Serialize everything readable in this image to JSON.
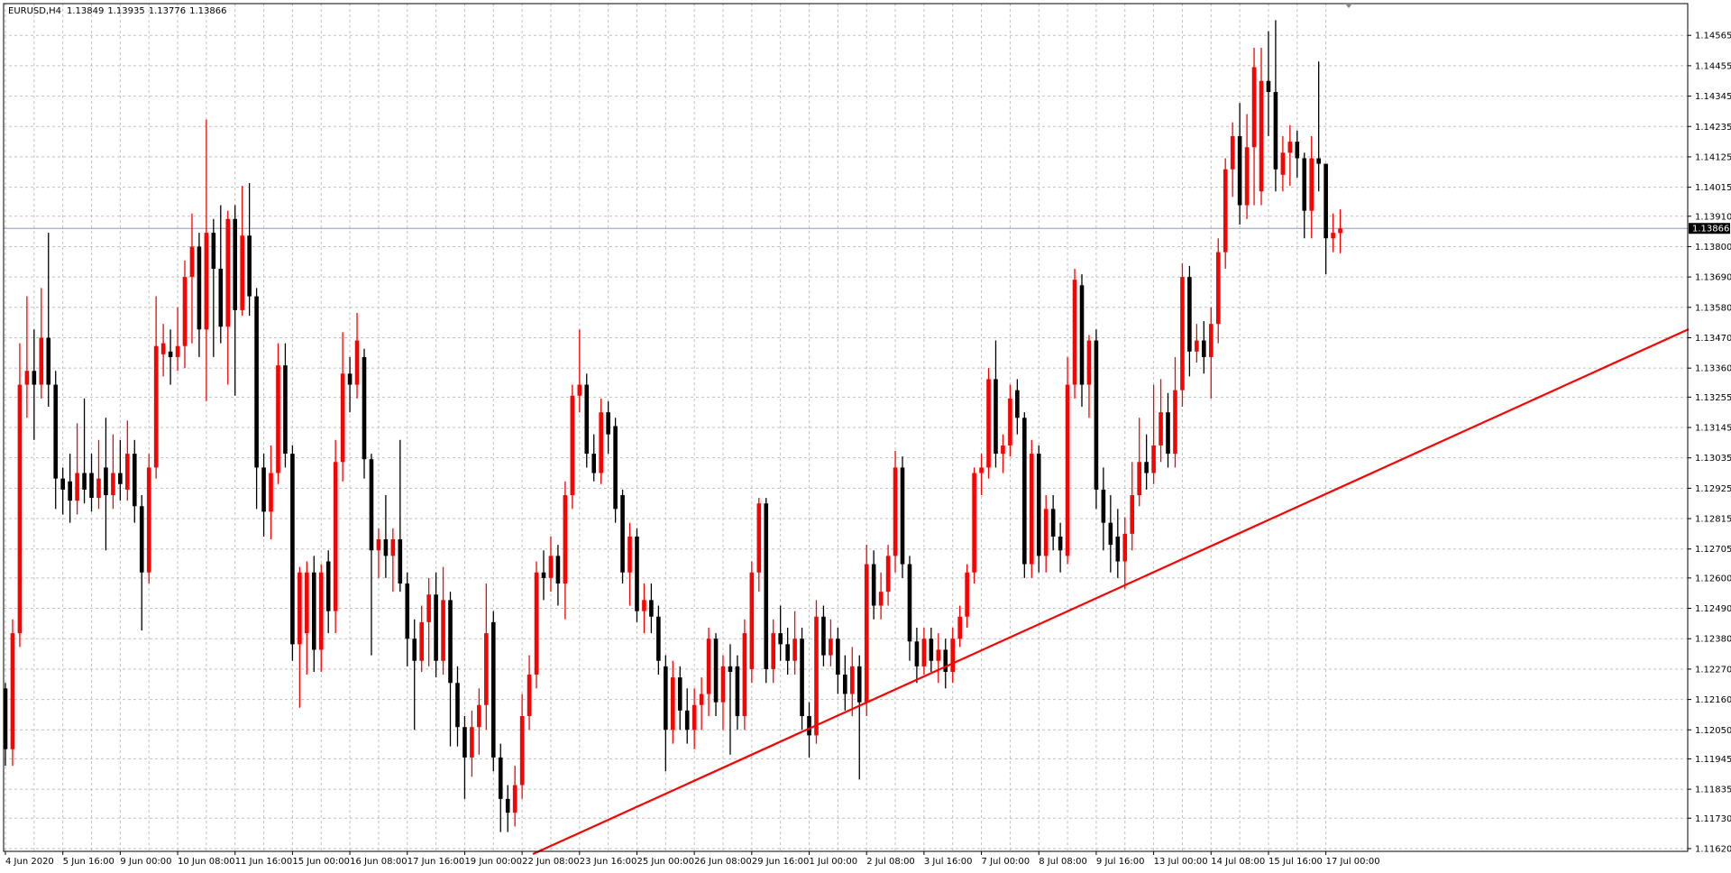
{
  "chart_data": {
    "type": "candlestick",
    "title": "EURUSD,H4",
    "bull_color": "#ff0000",
    "bear_color": "#000000",
    "grid": true,
    "current_price": 1.13866,
    "ylim": [
      1.1161,
      1.1468
    ],
    "yticks": [
      1.14565,
      1.14455,
      1.14345,
      1.14235,
      1.14125,
      1.14015,
      {
        "value": 1.1391,
        "label": "1.13910"
      },
      {
        "value": 1.138,
        "label": "1.13800"
      },
      {
        "value": 1.1369,
        "label": "1.13690"
      },
      {
        "value": 1.1358,
        "label": "1.13580"
      },
      {
        "value": 1.1347,
        "label": "1.13470"
      },
      {
        "value": 1.1336,
        "label": "1.13360"
      },
      1.13255,
      1.13145,
      1.13035,
      1.12925,
      1.12815,
      1.12705,
      {
        "value": 1.126,
        "label": "1.12600"
      },
      {
        "value": 1.1249,
        "label": "1.12490"
      },
      {
        "value": 1.1238,
        "label": "1.12380"
      },
      {
        "value": 1.1227,
        "label": "1.12270"
      },
      {
        "value": 1.1216,
        "label": "1.12160"
      },
      {
        "value": 1.1205,
        "label": "1.12050"
      },
      1.11945,
      1.11835,
      {
        "value": 1.1173,
        "label": "1.11730"
      },
      {
        "value": 1.1162,
        "label": "1.11620"
      }
    ],
    "categories": [
      "4 Jun 2020",
      null,
      null,
      null,
      null,
      null,
      null,
      null,
      "5 Jun 16:00",
      null,
      null,
      null,
      null,
      null,
      null,
      null,
      "9 Jun 00:00",
      null,
      null,
      null,
      null,
      null,
      null,
      null,
      "10 Jun 08:00",
      null,
      null,
      null,
      null,
      null,
      null,
      null,
      "11 Jun 16:00",
      null,
      null,
      null,
      null,
      null,
      null,
      null,
      "15 Jun 00:00",
      null,
      null,
      null,
      null,
      null,
      null,
      null,
      "16 Jun 08:00",
      null,
      null,
      null,
      null,
      null,
      null,
      null,
      "17 Jun 16:00",
      null,
      null,
      null,
      null,
      null,
      null,
      null,
      "19 Jun 00:00",
      null,
      null,
      null,
      null,
      null,
      null,
      null,
      "22 Jun 08:00",
      null,
      null,
      null,
      null,
      null,
      null,
      null,
      "23 Jun 16:00",
      null,
      null,
      null,
      null,
      null,
      null,
      null,
      "25 Jun 00:00",
      null,
      null,
      null,
      null,
      null,
      null,
      null,
      "26 Jun 08:00",
      null,
      null,
      null,
      null,
      null,
      null,
      null,
      "29 Jun 16:00",
      null,
      null,
      null,
      null,
      null,
      null,
      null,
      "1 Jul 00:00",
      null,
      null,
      null,
      null,
      null,
      null,
      null,
      "2 Jul 08:00",
      null,
      null,
      null,
      null,
      null,
      null,
      null,
      "3 Jul 16:00",
      null,
      null,
      null,
      null,
      null,
      null,
      null,
      "7 Jul 00:00",
      null,
      null,
      null,
      null,
      null,
      null,
      null,
      "8 Jul 08:00",
      null,
      null,
      null,
      null,
      null,
      null,
      null,
      "9 Jul 16:00",
      null,
      null,
      null,
      null,
      null,
      null,
      null,
      "13 Jul 00:00",
      null,
      null,
      null,
      null,
      null,
      null,
      null,
      "14 Jul 08:00",
      null,
      null,
      null,
      null,
      null,
      null,
      null,
      "15 Jul 16:00",
      null,
      null,
      null,
      null,
      null,
      null,
      null,
      "17 Jul 00:00",
      null,
      null
    ],
    "ohlc": [
      [
        1.122,
        1.1222,
        1.1192,
        1.1198
      ],
      [
        1.1198,
        1.1245,
        1.1192,
        1.124
      ],
      [
        1.124,
        1.1345,
        1.1235,
        1.133
      ],
      [
        1.133,
        1.1362,
        1.1318,
        1.1335
      ],
      [
        1.1335,
        1.135,
        1.131,
        1.133
      ],
      [
        1.133,
        1.1365,
        1.1325,
        1.1347
      ],
      [
        1.1347,
        1.1385,
        1.1322,
        1.133
      ],
      [
        1.133,
        1.1335,
        1.1285,
        1.1296
      ],
      [
        1.1296,
        1.13,
        1.1283,
        1.1292
      ],
      [
        1.1295,
        1.1305,
        1.128,
        1.1288
      ],
      [
        1.1288,
        1.1316,
        1.1283,
        1.1298
      ],
      [
        1.1298,
        1.1325,
        1.1287,
        1.1292
      ],
      [
        1.1298,
        1.1305,
        1.1284,
        1.1289
      ],
      [
        1.1289,
        1.131,
        1.1285,
        1.1296
      ],
      [
        1.13,
        1.1318,
        1.127,
        1.129
      ],
      [
        1.129,
        1.1312,
        1.1285,
        1.1298
      ],
      [
        1.1298,
        1.131,
        1.1288,
        1.1294
      ],
      [
        1.1292,
        1.1317,
        1.1288,
        1.1305
      ],
      [
        1.1305,
        1.131,
        1.128,
        1.1286
      ],
      [
        1.1286,
        1.129,
        1.1241,
        1.1262
      ],
      [
        1.1262,
        1.1305,
        1.1258,
        1.13
      ],
      [
        1.13,
        1.1362,
        1.1296,
        1.1344
      ],
      [
        1.1341,
        1.1352,
        1.1333,
        1.1345
      ],
      [
        1.1342,
        1.135,
        1.133,
        1.134
      ],
      [
        1.134,
        1.1358,
        1.1335,
        1.1344
      ],
      [
        1.1344,
        1.1375,
        1.1336,
        1.1369
      ],
      [
        1.1369,
        1.1392,
        1.1345,
        1.138
      ],
      [
        1.138,
        1.1385,
        1.134,
        1.135
      ],
      [
        1.135,
        1.1426,
        1.1324,
        1.1385
      ],
      [
        1.1385,
        1.139,
        1.134,
        1.1372
      ],
      [
        1.1372,
        1.1395,
        1.1345,
        1.1351
      ],
      [
        1.1351,
        1.1393,
        1.133,
        1.139
      ],
      [
        1.139,
        1.1395,
        1.1326,
        1.1357
      ],
      [
        1.1357,
        1.1402,
        1.1355,
        1.1384
      ],
      [
        1.1384,
        1.1403,
        1.1355,
        1.1362
      ],
      [
        1.1362,
        1.1365,
        1.1285,
        1.13
      ],
      [
        1.13,
        1.1305,
        1.1275,
        1.1284
      ],
      [
        1.1284,
        1.1308,
        1.1274,
        1.1298
      ],
      [
        1.1298,
        1.1345,
        1.1294,
        1.1337
      ],
      [
        1.1337,
        1.1345,
        1.13,
        1.1305
      ],
      [
        1.1305,
        1.1308,
        1.123,
        1.1236
      ],
      [
        1.1236,
        1.1264,
        1.1213,
        1.1262
      ],
      [
        1.124,
        1.1266,
        1.1225,
        1.1262
      ],
      [
        1.1262,
        1.1268,
        1.1226,
        1.1234
      ],
      [
        1.1234,
        1.1265,
        1.1226,
        1.1262
      ],
      [
        1.1266,
        1.127,
        1.124,
        1.1248
      ],
      [
        1.1248,
        1.131,
        1.124,
        1.1302
      ],
      [
        1.1302,
        1.1349,
        1.1295,
        1.1334
      ],
      [
        1.1334,
        1.134,
        1.132,
        1.133
      ],
      [
        1.133,
        1.1356,
        1.1325,
        1.1346
      ],
      [
        1.134,
        1.1343,
        1.1296,
        1.1303
      ],
      [
        1.1303,
        1.1305,
        1.1232,
        1.127
      ],
      [
        1.127,
        1.1278,
        1.126,
        1.1274
      ],
      [
        1.1274,
        1.129,
        1.126,
        1.1268
      ],
      [
        1.1268,
        1.1278,
        1.1255,
        1.1274
      ],
      [
        1.1274,
        1.131,
        1.1255,
        1.1258
      ],
      [
        1.1258,
        1.1262,
        1.1228,
        1.1238
      ],
      [
        1.1238,
        1.1245,
        1.1205,
        1.123
      ],
      [
        1.123,
        1.125,
        1.1226,
        1.1244
      ],
      [
        1.1244,
        1.126,
        1.1228,
        1.1254
      ],
      [
        1.1254,
        1.1262,
        1.1224,
        1.123
      ],
      [
        1.123,
        1.1264,
        1.1225,
        1.1252
      ],
      [
        1.1252,
        1.1255,
        1.1199,
        1.1222
      ],
      [
        1.1222,
        1.1228,
        1.1199,
        1.1206
      ],
      [
        1.1206,
        1.121,
        1.118,
        1.1195
      ],
      [
        1.1195,
        1.1212,
        1.1188,
        1.1206
      ],
      [
        1.1206,
        1.122,
        1.1196,
        1.1214
      ],
      [
        1.1214,
        1.1258,
        1.1205,
        1.124
      ],
      [
        1.1244,
        1.1248,
        1.119,
        1.1195
      ],
      [
        1.1195,
        1.12,
        1.1168,
        1.118
      ],
      [
        1.118,
        1.1185,
        1.1168,
        1.1175
      ],
      [
        1.1175,
        1.1192,
        1.117,
        1.1185
      ],
      [
        1.1185,
        1.1218,
        1.118,
        1.121
      ],
      [
        1.121,
        1.1232,
        1.1205,
        1.1225
      ],
      [
        1.1225,
        1.1266,
        1.122,
        1.1262
      ],
      [
        1.1262,
        1.127,
        1.1252,
        1.126
      ],
      [
        1.126,
        1.1275,
        1.1255,
        1.1268
      ],
      [
        1.1268,
        1.1272,
        1.125,
        1.1258
      ],
      [
        1.1258,
        1.1295,
        1.1245,
        1.129
      ],
      [
        1.129,
        1.133,
        1.1285,
        1.1326
      ],
      [
        1.1326,
        1.135,
        1.132,
        1.133
      ],
      [
        1.133,
        1.1334,
        1.13,
        1.1305
      ],
      [
        1.1305,
        1.1312,
        1.1295,
        1.1298
      ],
      [
        1.1298,
        1.1325,
        1.1294,
        1.132
      ],
      [
        1.132,
        1.1324,
        1.1305,
        1.1312
      ],
      [
        1.1315,
        1.1318,
        1.128,
        1.1285
      ],
      [
        1.129,
        1.1292,
        1.1258,
        1.1262
      ],
      [
        1.1262,
        1.128,
        1.125,
        1.1275
      ],
      [
        1.1275,
        1.1278,
        1.1244,
        1.1248
      ],
      [
        1.1248,
        1.1258,
        1.124,
        1.1252
      ],
      [
        1.1252,
        1.1258,
        1.124,
        1.1246
      ],
      [
        1.1246,
        1.125,
        1.1225,
        1.123
      ],
      [
        1.1228,
        1.1232,
        1.119,
        1.1205
      ],
      [
        1.1205,
        1.123,
        1.12,
        1.1224
      ],
      [
        1.1224,
        1.1228,
        1.1205,
        1.1212
      ],
      [
        1.1212,
        1.122,
        1.12,
        1.1205
      ],
      [
        1.1205,
        1.122,
        1.1198,
        1.1214
      ],
      [
        1.1214,
        1.1224,
        1.1205,
        1.1218
      ],
      [
        1.1218,
        1.1242,
        1.121,
        1.1238
      ],
      [
        1.1238,
        1.124,
        1.121,
        1.1215
      ],
      [
        1.1215,
        1.1232,
        1.1205,
        1.1228
      ],
      [
        1.1228,
        1.1236,
        1.1196,
        1.1226
      ],
      [
        1.1228,
        1.1232,
        1.1205,
        1.121
      ],
      [
        1.121,
        1.1245,
        1.1205,
        1.124
      ],
      [
        1.1227,
        1.1266,
        1.1222,
        1.1262
      ],
      [
        1.1262,
        1.1289,
        1.1255,
        1.1287
      ],
      [
        1.1287,
        1.1289,
        1.1222,
        1.1227
      ],
      [
        1.1227,
        1.1245,
        1.1222,
        1.124
      ],
      [
        1.124,
        1.125,
        1.123,
        1.1236
      ],
      [
        1.1236,
        1.1242,
        1.1225,
        1.123
      ],
      [
        1.123,
        1.1248,
        1.1225,
        1.1238
      ],
      [
        1.1238,
        1.1242,
        1.1205,
        1.121
      ],
      [
        1.121,
        1.1215,
        1.1195,
        1.1203
      ],
      [
        1.1203,
        1.1252,
        1.12,
        1.1246
      ],
      [
        1.1246,
        1.125,
        1.1228,
        1.1232
      ],
      [
        1.1232,
        1.1245,
        1.1228,
        1.1238
      ],
      [
        1.1238,
        1.1242,
        1.1218,
        1.1225
      ],
      [
        1.1225,
        1.1232,
        1.1212,
        1.1218
      ],
      [
        1.1218,
        1.1235,
        1.121,
        1.1228
      ],
      [
        1.1228,
        1.1232,
        1.1187,
        1.1215
      ],
      [
        1.1215,
        1.1272,
        1.121,
        1.1265
      ],
      [
        1.1265,
        1.127,
        1.1245,
        1.125
      ],
      [
        1.125,
        1.1262,
        1.1245,
        1.1255
      ],
      [
        1.1255,
        1.1272,
        1.125,
        1.1268
      ],
      [
        1.1268,
        1.1306,
        1.1262,
        1.13
      ],
      [
        1.13,
        1.1304,
        1.126,
        1.1265
      ],
      [
        1.1265,
        1.1268,
        1.123,
        1.1237
      ],
      [
        1.1237,
        1.1242,
        1.1222,
        1.1228
      ],
      [
        1.1228,
        1.1242,
        1.1225,
        1.1238
      ],
      [
        1.1238,
        1.1242,
        1.1226,
        1.123
      ],
      [
        1.123,
        1.124,
        1.1222,
        1.1234
      ],
      [
        1.1234,
        1.1238,
        1.122,
        1.1226
      ],
      [
        1.1226,
        1.1242,
        1.1222,
        1.1238
      ],
      [
        1.1238,
        1.125,
        1.1235,
        1.1246
      ],
      [
        1.1246,
        1.1265,
        1.1242,
        1.1262
      ],
      [
        1.1262,
        1.13,
        1.1258,
        1.1298
      ],
      [
        1.1298,
        1.1305,
        1.129,
        1.13
      ],
      [
        1.13,
        1.1336,
        1.1296,
        1.1332
      ],
      [
        1.1332,
        1.1346,
        1.13,
        1.1305
      ],
      [
        1.1305,
        1.1312,
        1.1298,
        1.1308
      ],
      [
        1.1308,
        1.133,
        1.1304,
        1.1325
      ],
      [
        1.1328,
        1.1332,
        1.1312,
        1.1318
      ],
      [
        1.1318,
        1.132,
        1.126,
        1.1265
      ],
      [
        1.1265,
        1.131,
        1.126,
        1.1305
      ],
      [
        1.1305,
        1.1308,
        1.1262,
        1.1268
      ],
      [
        1.1268,
        1.129,
        1.1262,
        1.1285
      ],
      [
        1.1285,
        1.129,
        1.127,
        1.1275
      ],
      [
        1.1275,
        1.128,
        1.1262,
        1.127
      ],
      [
        1.1268,
        1.134,
        1.1265,
        1.133
      ],
      [
        1.133,
        1.1372,
        1.1325,
        1.1368
      ],
      [
        1.1366,
        1.137,
        1.1322,
        1.133
      ],
      [
        1.133,
        1.1348,
        1.1318,
        1.1346
      ],
      [
        1.1346,
        1.135,
        1.1285,
        1.1292
      ],
      [
        1.1292,
        1.13,
        1.127,
        1.128
      ],
      [
        1.128,
        1.129,
        1.1262,
        1.1272
      ],
      [
        1.1275,
        1.1285,
        1.126,
        1.1266
      ],
      [
        1.1266,
        1.1282,
        1.1256,
        1.1276
      ],
      [
        1.1276,
        1.1302,
        1.127,
        1.129
      ],
      [
        1.129,
        1.1318,
        1.1286,
        1.1302
      ],
      [
        1.1302,
        1.1312,
        1.1292,
        1.1298
      ],
      [
        1.1298,
        1.133,
        1.1294,
        1.1308
      ],
      [
        1.1308,
        1.1332,
        1.1302,
        1.132
      ],
      [
        1.132,
        1.1327,
        1.13,
        1.1305
      ],
      [
        1.1305,
        1.134,
        1.13,
        1.1328
      ],
      [
        1.1328,
        1.1374,
        1.1322,
        1.1369
      ],
      [
        1.1369,
        1.1373,
        1.1333,
        1.1342
      ],
      [
        1.1342,
        1.1352,
        1.1338,
        1.1346
      ],
      [
        1.1346,
        1.1353,
        1.1334,
        1.134
      ],
      [
        1.134,
        1.1358,
        1.1325,
        1.1352
      ],
      [
        1.1352,
        1.1383,
        1.1345,
        1.1378
      ],
      [
        1.1378,
        1.1412,
        1.1372,
        1.1408
      ],
      [
        1.1408,
        1.1425,
        1.1398,
        1.142
      ],
      [
        1.142,
        1.1432,
        1.1388,
        1.1395
      ],
      [
        1.1395,
        1.1428,
        1.139,
        1.1416
      ],
      [
        1.1416,
        1.1452,
        1.1395,
        1.1445
      ],
      [
        1.14,
        1.1452,
        1.1395,
        1.144
      ],
      [
        1.144,
        1.1458,
        1.142,
        1.1436
      ],
      [
        1.1436,
        1.1462,
        1.14,
        1.1408
      ],
      [
        1.1406,
        1.142,
        1.14,
        1.1414
      ],
      [
        1.1414,
        1.1424,
        1.1402,
        1.1418
      ],
      [
        1.1418,
        1.1422,
        1.1405,
        1.1412
      ],
      [
        1.1412,
        1.1414,
        1.1383,
        1.1393
      ],
      [
        1.1393,
        1.142,
        1.1383,
        1.1412
      ],
      [
        1.1412,
        1.1447,
        1.14,
        1.141
      ],
      [
        1.141,
        1.141,
        1.137,
        1.1383
      ],
      [
        1.1383,
        1.1392,
        1.1378,
        1.1385
      ],
      [
        1.13849,
        1.13935,
        1.13776,
        1.13866
      ]
    ]
  }
}
